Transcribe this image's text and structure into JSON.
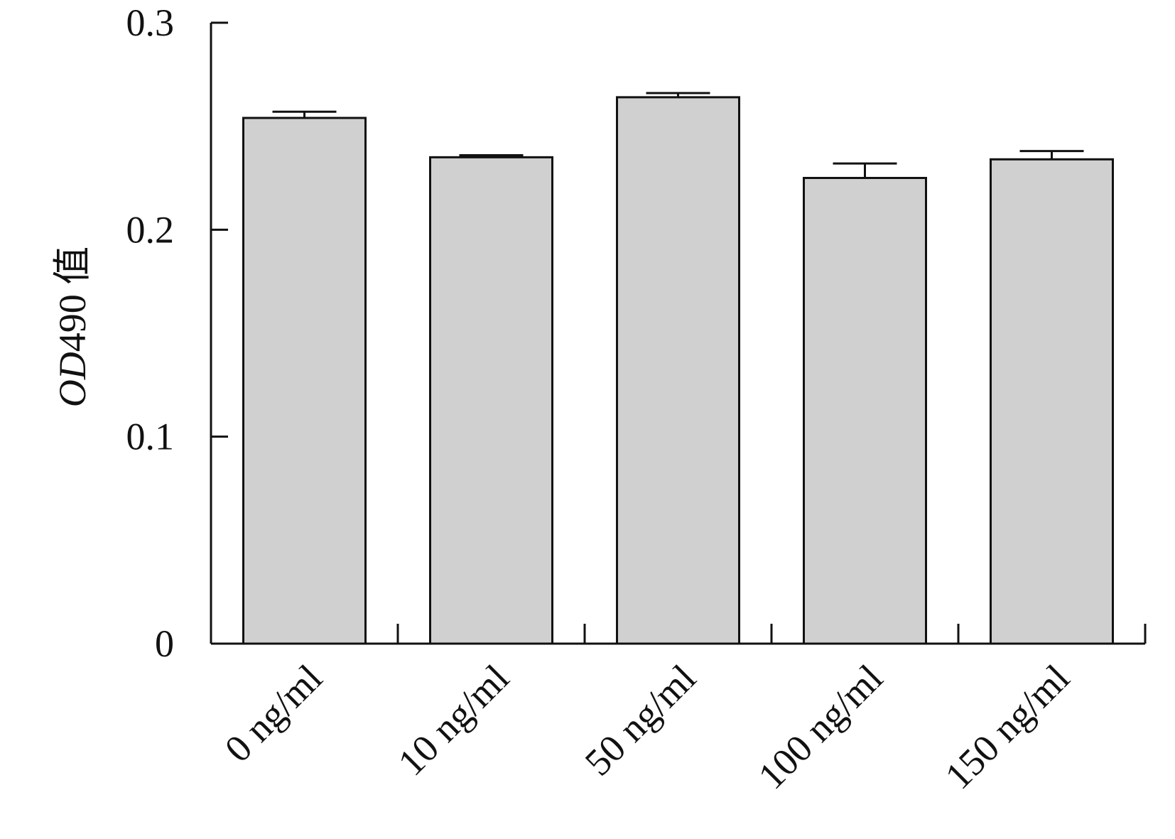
{
  "chart_data": {
    "type": "bar",
    "title": "",
    "xlabel": "",
    "ylabel_italic": "OD",
    "ylabel_rest": "490 值",
    "categories": [
      "0 ng/ml",
      "10 ng/ml",
      "50 ng/ml",
      "100 ng/ml",
      "150 ng/ml"
    ],
    "values": [
      0.254,
      0.235,
      0.264,
      0.225,
      0.234
    ],
    "errors": [
      0.003,
      0.001,
      0.002,
      0.007,
      0.004
    ],
    "ylim": [
      0,
      0.3
    ],
    "yticks": [
      0,
      0.1,
      0.2,
      0.3
    ],
    "ytick_labels": [
      "0",
      "0.1",
      "0.2",
      "0.3"
    ],
    "grid": false,
    "legend": "none",
    "bar_color": "#d0d0d0",
    "edge_color": "#111111"
  }
}
